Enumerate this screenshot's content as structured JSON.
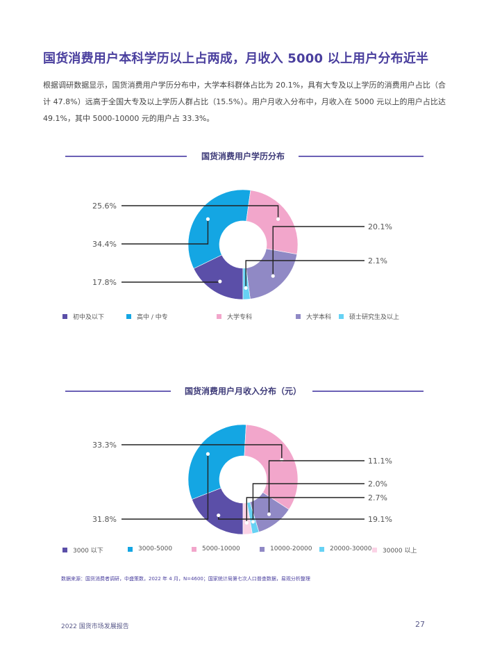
{
  "title": "国货消费用户本科学历以上占两成，月收入 5000 以上用户分布近半",
  "paragraph": "根据调研数据显示，国货消费用户学历分布中，大学本科群体占比为 20.1%，具有大专及以上学历的消费用户占比（合计 47.8%）远高于全国大专及以上学历人群占比（15.5%）。用户月收入分布中，月收入在 5000 元以上的用户占比达 49.1%，其中 5000-10000 元的用户占 33.3%。",
  "chart_data": [
    {
      "type": "pie",
      "title": "国货消费用户学历分布",
      "categories": [
        "初中及以下",
        "高中 / 中专",
        "大学专科",
        "大学本科",
        "硕士研究生及以上"
      ],
      "values": [
        17.8,
        34.4,
        25.6,
        20.1,
        2.1
      ],
      "value_labels": [
        "17.8%",
        "34.4%",
        "25.6%",
        "20.1%",
        "2.1%"
      ],
      "colors": [
        "#5b4fa8",
        "#14a6e3",
        "#f2a6cb",
        "#9089c5",
        "#66d2f4"
      ],
      "donut": true,
      "legend_position": "bottom"
    },
    {
      "type": "pie",
      "title": "国货消费用户月收入分布（元）",
      "categories": [
        "3000 以下",
        "3000-5000",
        "5000-10000",
        "10000-20000",
        "20000-30000",
        "30000 以上"
      ],
      "values": [
        19.1,
        31.8,
        33.3,
        11.1,
        2.0,
        2.7
      ],
      "value_labels": [
        "19.1%",
        "31.8%",
        "33.3%",
        "11.1%",
        "2.0%",
        "2.7%"
      ],
      "colors": [
        "#5b4fa8",
        "#14a6e3",
        "#f2a6cb",
        "#9089c5",
        "#66d2f4",
        "#fbd3e6"
      ],
      "donut": true,
      "legend_position": "bottom"
    }
  ],
  "source": "数据来源：国货消费者调研，中盛策数，2022 年 4 月，N=4600；国家统计局第七次人口普查数据，易观分析整理",
  "footer": {
    "report_name": "2022 国货市场发展报告",
    "page_number": "27"
  }
}
